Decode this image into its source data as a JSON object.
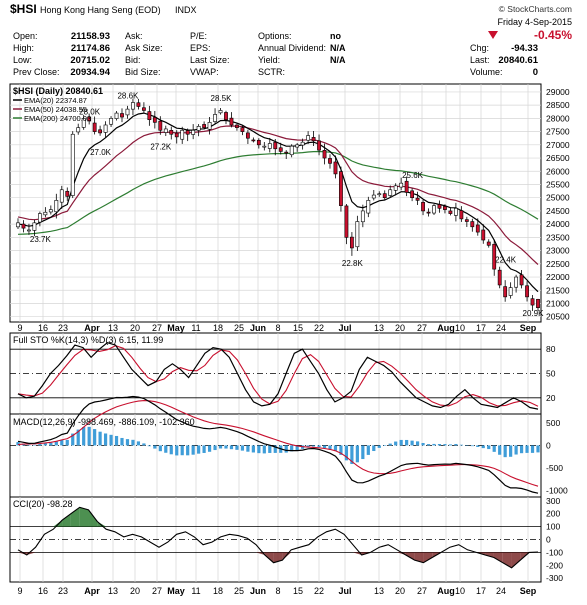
{
  "header": {
    "symbol": "$HSI",
    "name": "Hong Kong Hang Seng (EOD)",
    "exchange": "INDX",
    "copyright": "© StockCharts.com",
    "date": "Friday 4-Sep-2015",
    "change_pct": "-0.45%",
    "change_pct_direction": "down",
    "quote": [
      {
        "label": "Open:",
        "value": "21158.93"
      },
      {
        "label": "High:",
        "value": "21174.86"
      },
      {
        "label": "Low:",
        "value": "20715.02"
      },
      {
        "label": "Prev Close:",
        "value": "20934.94"
      }
    ],
    "book": [
      {
        "label": "Ask:",
        "value": ""
      },
      {
        "label": "Ask Size:",
        "value": ""
      },
      {
        "label": "Bid:",
        "value": ""
      },
      {
        "label": "Bid Size:",
        "value": ""
      }
    ],
    "ratios": [
      {
        "label": "P/E:",
        "value": ""
      },
      {
        "label": "EPS:",
        "value": ""
      },
      {
        "label": "Last Size:",
        "value": ""
      },
      {
        "label": "VWAP:",
        "value": ""
      }
    ],
    "extras": [
      {
        "label": "Options:",
        "value": "no"
      },
      {
        "label": "Annual Dividend:",
        "value": "N/A"
      },
      {
        "label": "Yield:",
        "value": "N/A"
      },
      {
        "label": "SCTR:",
        "value": ""
      }
    ],
    "right": [
      {
        "label": "Chg:",
        "value": "-94.33"
      },
      {
        "label": "Last:",
        "value": "20840.61"
      },
      {
        "label": "Volume:",
        "value": "0"
      }
    ]
  },
  "colors": {
    "up_candle": "#ffffff",
    "down_candle": "#c8102e",
    "candle_outline": "#000000",
    "ema20": "#000000",
    "ema50": "#8b1a3a",
    "ema200": "#2e7d32",
    "grid": "#d6d6d6",
    "sto_k": "#000000",
    "sto_d": "#c8102e",
    "macd_line": "#000000",
    "macd_signal": "#c8102e",
    "macd_hist": "#3f9dd8",
    "cci_line": "#000000",
    "cci_pos_fill": "#2e7d32",
    "cci_neg_fill": "#7a2a2a",
    "change_down": "#c8102e"
  },
  "chart_data": [
    {
      "type": "candlestick",
      "title": "$HSI (Daily) 20840.61",
      "legend": [
        {
          "name": "EMA(20)",
          "value": "22374.87",
          "color": "#000000"
        },
        {
          "name": "EMA(50)",
          "value": "24038.55",
          "color": "#8b1a3a"
        },
        {
          "name": "EMA(200)",
          "value": "24700.03",
          "color": "#2e7d32"
        }
      ],
      "x_tick_labels": [
        "9",
        "16",
        "23",
        "Apr",
        "13",
        "20",
        "27",
        "May",
        "11",
        "18",
        "25",
        "Jun",
        "8",
        "15",
        "22",
        "Jul",
        "13",
        "20",
        "27",
        "Aug",
        "10",
        "17",
        "24",
        "Sep"
      ],
      "x_tick_bold": [
        "Apr",
        "May",
        "Jun",
        "Jul",
        "Aug",
        "Sep"
      ],
      "ylim": [
        20300,
        29300
      ],
      "y_ticks": [
        20500,
        21000,
        21500,
        22000,
        22500,
        23000,
        23500,
        24000,
        24500,
        25000,
        25500,
        26000,
        26500,
        27000,
        27500,
        28000,
        28500,
        29000
      ],
      "grid": true,
      "annotations": [
        {
          "text": "23.7K",
          "price": 23700
        },
        {
          "text": "28.0K",
          "price": 28000
        },
        {
          "text": "28.6K",
          "price": 28600
        },
        {
          "text": "27.0K",
          "price": 27000
        },
        {
          "text": "27.2K",
          "price": 27200
        },
        {
          "text": "28.5K",
          "price": 28500
        },
        {
          "text": "22.8K",
          "price": 22800
        },
        {
          "text": "25.6K",
          "price": 25600
        },
        {
          "text": "22.4K",
          "price": 22400
        },
        {
          "text": "20.9K",
          "price": 20900
        }
      ],
      "anchor_closes": [
        24050,
        23850,
        23780,
        24050,
        24400,
        24450,
        24550,
        24900,
        25300,
        25050,
        27400,
        27650,
        28000,
        27900,
        27500,
        27450,
        27750,
        28000,
        28200,
        28050,
        28350,
        28600,
        28450,
        28300,
        27950,
        27850,
        27550,
        27600,
        27400,
        27300,
        27550,
        27400,
        27550,
        27700,
        27650,
        27850,
        28150,
        28300,
        27950,
        27750,
        27650,
        27500,
        27250,
        27150,
        27000,
        26950,
        27050,
        26850,
        26750,
        26700,
        26950,
        27000,
        27100,
        27350,
        27150,
        26800,
        26500,
        26300,
        25900,
        24700,
        23500,
        23100,
        24100,
        24500,
        24900,
        25100,
        25150,
        25000,
        25300,
        25450,
        25550,
        25200,
        25000,
        24900,
        24500,
        24450,
        24700,
        24600,
        24550,
        24400,
        24600,
        24200,
        24100,
        23900,
        23700,
        23400,
        23200,
        22300,
        21700,
        21250,
        21600,
        22000,
        21700,
        21250,
        20940,
        20840
      ]
    },
    {
      "type": "line",
      "title": "Full STO %K(14,3) %D(3) 6.15, 11.99",
      "series": [
        {
          "name": "%K",
          "values": []
        },
        {
          "name": "%D",
          "values": []
        }
      ],
      "ylim": [
        0,
        100
      ],
      "y_ticks": [
        20,
        50,
        80
      ],
      "k_anchors": [
        25,
        20,
        22,
        35,
        50,
        60,
        72,
        85,
        82,
        70,
        80,
        88,
        85,
        70,
        55,
        45,
        35,
        40,
        55,
        62,
        55,
        45,
        60,
        75,
        82,
        80,
        70,
        50,
        30,
        15,
        10,
        12,
        25,
        50,
        75,
        80,
        65,
        50,
        30,
        15,
        20,
        28,
        55,
        70,
        65,
        60,
        52,
        40,
        30,
        20,
        15,
        10,
        8,
        12,
        22,
        30,
        20,
        12,
        10,
        8,
        14,
        20,
        15,
        8,
        6
      ]
    },
    {
      "type": "line",
      "title": "MACD(12,26,9) -988.469, -886.109, -102.360",
      "series": [
        {
          "name": "MACD",
          "values": []
        },
        {
          "name": "Signal",
          "values": []
        },
        {
          "name": "Histogram",
          "values": []
        }
      ],
      "ylim": [
        -1150,
        700
      ],
      "y_ticks": [
        500,
        0,
        -500,
        -1000
      ]
    },
    {
      "type": "area",
      "title": "CCI(20) -98.28",
      "series": [
        {
          "name": "CCI(20)",
          "values": []
        }
      ],
      "ylim": [
        -330,
        330
      ],
      "y_ticks": [
        300,
        200,
        100,
        0,
        -100,
        -200,
        -300
      ],
      "cci_anchors": [
        -80,
        -120,
        -60,
        40,
        80,
        150,
        200,
        250,
        230,
        140,
        80,
        60,
        20,
        40,
        20,
        -20,
        -60,
        -20,
        40,
        60,
        20,
        -40,
        -20,
        20,
        40,
        30,
        10,
        -40,
        -120,
        -180,
        -160,
        -80,
        -60,
        -40,
        20,
        60,
        80,
        40,
        -40,
        -120,
        -100,
        -60,
        -40,
        -80,
        -120,
        -160,
        -180,
        -140,
        -100,
        -60,
        -40,
        -80,
        -100,
        -120,
        -140,
        -180,
        -220,
        -160,
        -100,
        -98
      ]
    }
  ]
}
